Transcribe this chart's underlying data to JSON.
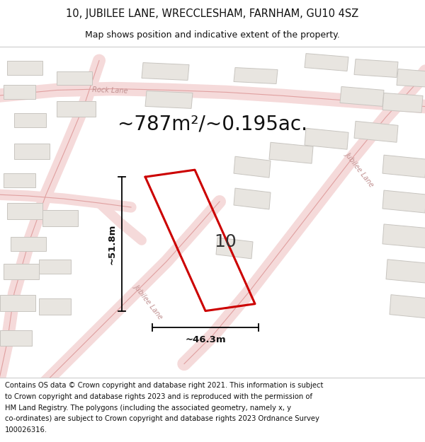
{
  "title_line1": "10, JUBILEE LANE, WRECCLESHAM, FARNHAM, GU10 4SZ",
  "title_line2": "Map shows position and indicative extent of the property.",
  "area_text": "~787m²/~0.195ac.",
  "property_number": "10",
  "dim_width": "~46.3m",
  "dim_height": "~51.8m",
  "footer_lines": [
    "Contains OS data © Crown copyright and database right 2021. This information is subject",
    "to Crown copyright and database rights 2023 and is reproduced with the permission of",
    "HM Land Registry. The polygons (including the associated geometry, namely x, y",
    "co-ordinates) are subject to Crown copyright and database rights 2023 Ordnance Survey",
    "100026316."
  ],
  "map_bg": "#f8f7f5",
  "footer_bg": "#ffffff",
  "road_color": "#f0b8b8",
  "road_center_color": "#e89898",
  "building_ec": "#c8c5c0",
  "building_fc": "#e8e5e0",
  "property_color": "#cc0000",
  "text_color": "#111111",
  "road_label_color": "#c09090",
  "title_fontsize": 10.5,
  "subtitle_fontsize": 9,
  "area_fontsize": 20,
  "dim_fontsize": 9.5,
  "propnum_fontsize": 18,
  "footer_fontsize": 7.2
}
